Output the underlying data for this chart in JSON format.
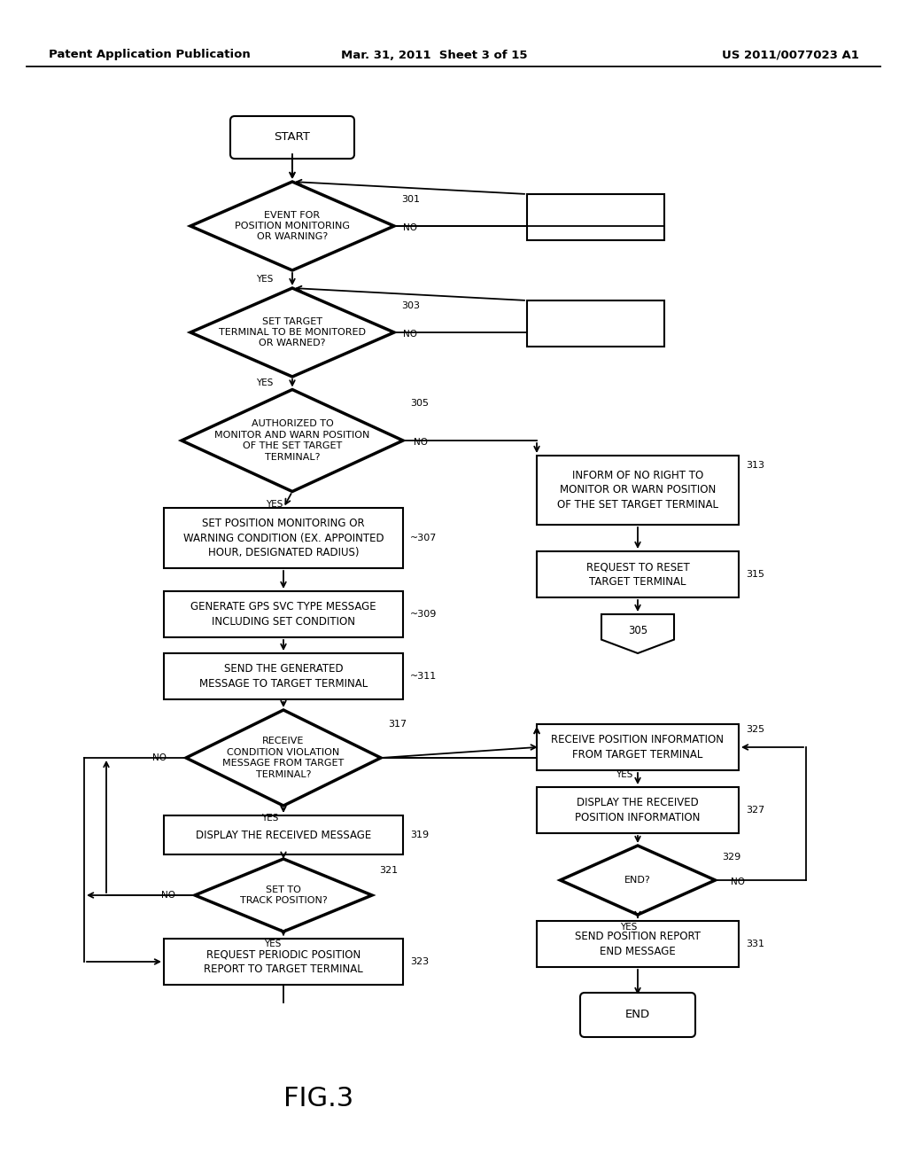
{
  "header_left": "Patent Application Publication",
  "header_mid": "Mar. 31, 2011  Sheet 3 of 15",
  "header_right": "US 2011/0077023 A1",
  "figure_label": "FIG.3",
  "bg_color": "#ffffff",
  "lc": "#000000"
}
